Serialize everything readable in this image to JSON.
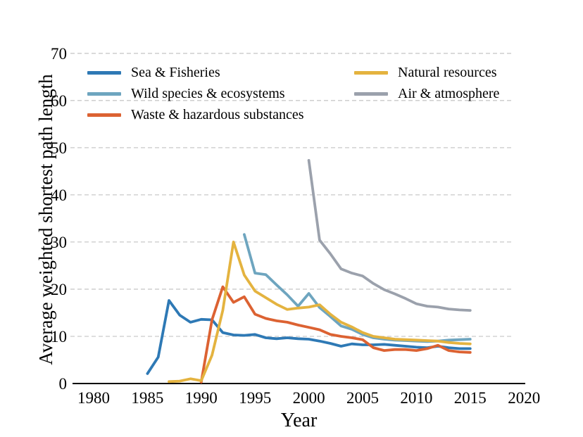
{
  "chart_data": {
    "type": "line",
    "title": "",
    "xlabel": "Year",
    "ylabel": "Average weighted shortest path length",
    "xlim": [
      1978,
      2022
    ],
    "ylim": [
      0,
      70
    ],
    "x_ticks": [
      1980,
      1985,
      1990,
      1995,
      2000,
      2005,
      2010,
      2015,
      2020
    ],
    "y_ticks": [
      0,
      10,
      20,
      30,
      40,
      50,
      60,
      70
    ],
    "grid": "horizontal dashed",
    "legend_position": "upper left, two columns, no frame",
    "series": [
      {
        "name": "Sea & Fisheries",
        "color": "#2e79b5",
        "start_year": 1985,
        "values": [
          2.1,
          5.6,
          17.6,
          14.5,
          13.0,
          13.6,
          13.5,
          10.8,
          10.3,
          10.2,
          10.4,
          9.7,
          9.5,
          9.7,
          9.5,
          9.4,
          9.0,
          8.5,
          7.9,
          8.4,
          8.2,
          8.2,
          8.3,
          8.1,
          7.9,
          7.7,
          7.6,
          7.9,
          7.6,
          7.4,
          7.4
        ]
      },
      {
        "name": "Wild species & ecosystems",
        "color": "#6ea5bf",
        "start_year": 1994,
        "values": [
          31.6,
          23.4,
          23.1,
          20.9,
          18.8,
          16.4,
          19.1,
          16.1,
          14.2,
          12.2,
          11.5,
          10.4,
          9.7,
          9.4,
          9.2,
          9.1,
          9.0,
          8.9,
          9.0,
          9.2,
          9.3,
          9.4
        ]
      },
      {
        "name": "Waste & hazardous substances",
        "color": "#dc6232",
        "start_year": 1990,
        "values": [
          0.3,
          13.5,
          20.5,
          17.2,
          18.4,
          14.7,
          13.8,
          13.3,
          13.0,
          12.4,
          11.9,
          11.4,
          10.4,
          10.0,
          9.7,
          9.3,
          7.6,
          7.0,
          7.2,
          7.2,
          7.0,
          7.4,
          8.1,
          7.0,
          6.7,
          6.6
        ]
      },
      {
        "name": "Natural resources",
        "color": "#e4b33f",
        "start_year": 1987,
        "values": [
          0.4,
          0.5,
          1.0,
          0.6,
          6.0,
          15.5,
          30.0,
          23.0,
          19.6,
          18.2,
          16.8,
          15.7,
          16.0,
          16.2,
          16.7,
          14.7,
          13.0,
          12.0,
          10.8,
          10.0,
          9.7,
          9.4,
          9.3,
          9.2,
          9.1,
          9.0,
          8.7,
          8.5,
          8.4
        ]
      },
      {
        "name": "Air & atmosphere",
        "color": "#9ba1ac",
        "start_year": 2000,
        "values": [
          47.3,
          30.4,
          27.5,
          24.3,
          23.4,
          22.8,
          21.2,
          19.9,
          19.0,
          18.0,
          16.9,
          16.4,
          16.2,
          15.8,
          15.6,
          15.5
        ]
      }
    ],
    "legend_columns": [
      [
        0,
        1,
        2
      ],
      [
        3,
        4
      ]
    ]
  },
  "colors": {
    "background": "#ffffff",
    "grid": "#c9c9c9",
    "axis": "#000000",
    "text": "#000000"
  }
}
